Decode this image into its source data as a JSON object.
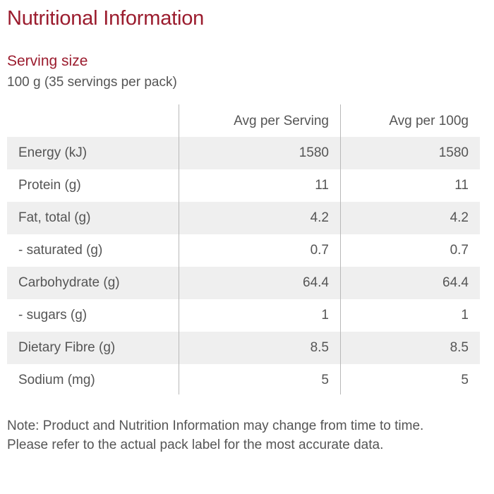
{
  "title": "Nutritional Information",
  "serving": {
    "heading": "Serving size",
    "value": "100 g (35 servings per pack)"
  },
  "table": {
    "columns": [
      "",
      "Avg per Serving",
      "Avg per 100g"
    ],
    "rows": [
      {
        "label": "Energy (kJ)",
        "per_serving": "1580",
        "per_100g": "1580"
      },
      {
        "label": "Protein (g)",
        "per_serving": "11",
        "per_100g": "11"
      },
      {
        "label": "Fat, total (g)",
        "per_serving": "4.2",
        "per_100g": "4.2"
      },
      {
        "label": "- saturated (g)",
        "per_serving": "0.7",
        "per_100g": "0.7"
      },
      {
        "label": "Carbohydrate (g)",
        "per_serving": "64.4",
        "per_100g": "64.4"
      },
      {
        "label": "- sugars (g)",
        "per_serving": "1",
        "per_100g": "1"
      },
      {
        "label": "Dietary Fibre (g)",
        "per_serving": "8.5",
        "per_100g": "8.5"
      },
      {
        "label": "Sodium (mg)",
        "per_serving": "5",
        "per_100g": "5"
      }
    ]
  },
  "note": "Note: Product and Nutrition Information may change from time to time. Please refer to the actual pack label for the most accurate data.",
  "colors": {
    "accent": "#9b1c2e",
    "text": "#555555",
    "row_shade": "#efefef",
    "divider": "#b8b8b8"
  }
}
